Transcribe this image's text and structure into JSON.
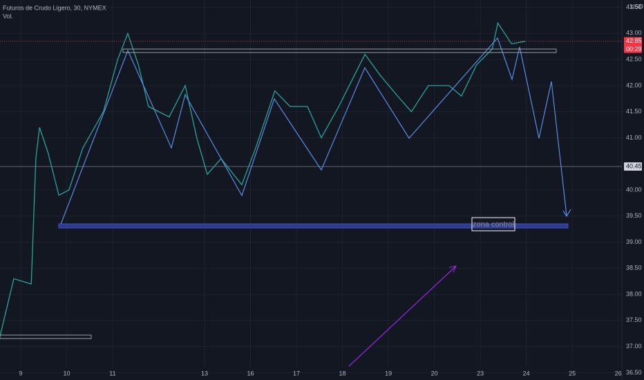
{
  "chart_data": {
    "type": "line",
    "title": "Futuros de Crudo Ligero, 30, NYMEX",
    "subtitle": "Vol.",
    "currency": "USD",
    "annotation": "zona control",
    "countdown": "00:29",
    "last_price": 42.85,
    "marked_price": 40.45,
    "x": [
      -0.45,
      -0.15,
      0.23,
      0.33,
      0.41,
      0.6,
      0.83,
      1.05,
      1.35,
      1.8,
      2.11,
      2.33,
      2.56,
      2.78,
      3.23,
      3.58,
      3.83,
      4.06,
      4.36,
      4.81,
      5.11,
      5.53,
      5.86,
      6.24,
      6.54,
      6.92,
      7.49,
      7.82,
      8.2,
      8.5,
      8.87,
      9.32,
      9.59,
      9.92,
      10.26,
      10.38,
      10.68,
      10.98
    ],
    "series": [
      {
        "name": "Crudo Ligero",
        "color": "#26a69a",
        "values": [
          37.2,
          38.3,
          38.2,
          40.6,
          41.2,
          40.7,
          39.9,
          40.0,
          40.8,
          41.5,
          42.5,
          43.0,
          42.4,
          41.6,
          41.4,
          42.0,
          41.0,
          40.3,
          40.6,
          40.1,
          40.8,
          41.9,
          41.6,
          41.6,
          41.0,
          41.6,
          42.6,
          42.2,
          41.8,
          41.5,
          42.0,
          42.0,
          41.8,
          42.4,
          42.7,
          43.2,
          42.8,
          42.85
        ]
      }
    ],
    "xlim": [
      -0.45,
      13.08
    ],
    "ylim": [
      36.36,
      43.64
    ],
    "xticks": [
      {
        "value": 0,
        "label": "9"
      },
      {
        "value": 1,
        "label": "10"
      },
      {
        "value": 2,
        "label": "11"
      },
      {
        "value": 4,
        "label": "13"
      },
      {
        "value": 5,
        "label": "16"
      },
      {
        "value": 6,
        "label": "17"
      },
      {
        "value": 7,
        "label": "18"
      },
      {
        "value": 8,
        "label": "19"
      },
      {
        "value": 9,
        "label": "20"
      },
      {
        "value": 10,
        "label": "23"
      },
      {
        "value": 11,
        "label": "24"
      },
      {
        "value": 12,
        "label": "25"
      },
      {
        "value": 13,
        "label": "26"
      }
    ],
    "yticks": [
      {
        "value": 43.5,
        "label": "43.50"
      },
      {
        "value": 43,
        "label": "43.00"
      },
      {
        "value": 42.5,
        "label": "42.50"
      },
      {
        "value": 42,
        "label": "42.00"
      },
      {
        "value": 41.5,
        "label": "41.50"
      },
      {
        "value": 41,
        "label": "41.00"
      },
      {
        "value": 40,
        "label": "40.00"
      },
      {
        "value": 39.5,
        "label": "39.50"
      },
      {
        "value": 39,
        "label": "39.00"
      },
      {
        "value": 38.5,
        "label": "38.50"
      },
      {
        "value": 38,
        "label": "38.00"
      },
      {
        "value": 37.5,
        "label": "37.50"
      },
      {
        "value": 37,
        "label": "37.00"
      },
      {
        "value": 36.5,
        "label": "36.50"
      }
    ],
    "grid": true
  }
}
